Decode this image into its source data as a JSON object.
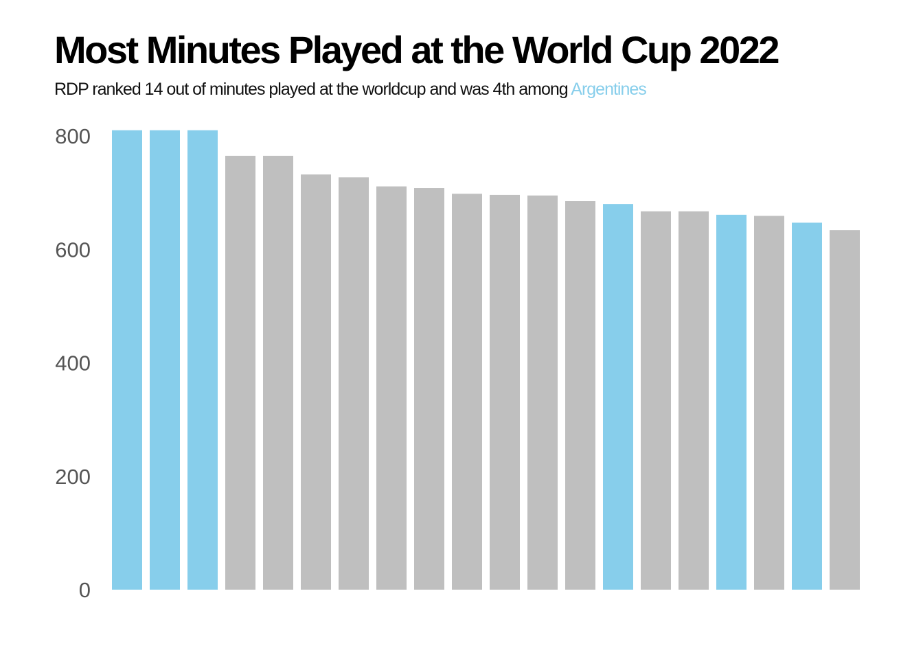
{
  "chart_data": {
    "type": "bar",
    "title": "Most Minutes Played at the World Cup 2022",
    "subtitle_prefix": "RDP ranked 14 out of minutes played at the worldcup and was 4th among ",
    "subtitle_highlight": "Argentines",
    "xlabel": "",
    "ylabel": "",
    "ylim": [
      0,
      820
    ],
    "yticks": [
      "0",
      "200",
      "400",
      "600",
      "800"
    ],
    "grid": false,
    "legend": "none",
    "colors": {
      "highlight": "#87ceeb",
      "other": "#bfbfbf"
    },
    "values": [
      810,
      810,
      810,
      765,
      765,
      732,
      727,
      711,
      708,
      698,
      696,
      695,
      685,
      680,
      667,
      667,
      661,
      659,
      647,
      634
    ],
    "highlight": [
      true,
      true,
      true,
      false,
      false,
      false,
      false,
      false,
      false,
      false,
      false,
      false,
      false,
      true,
      false,
      false,
      true,
      false,
      true,
      false
    ]
  }
}
